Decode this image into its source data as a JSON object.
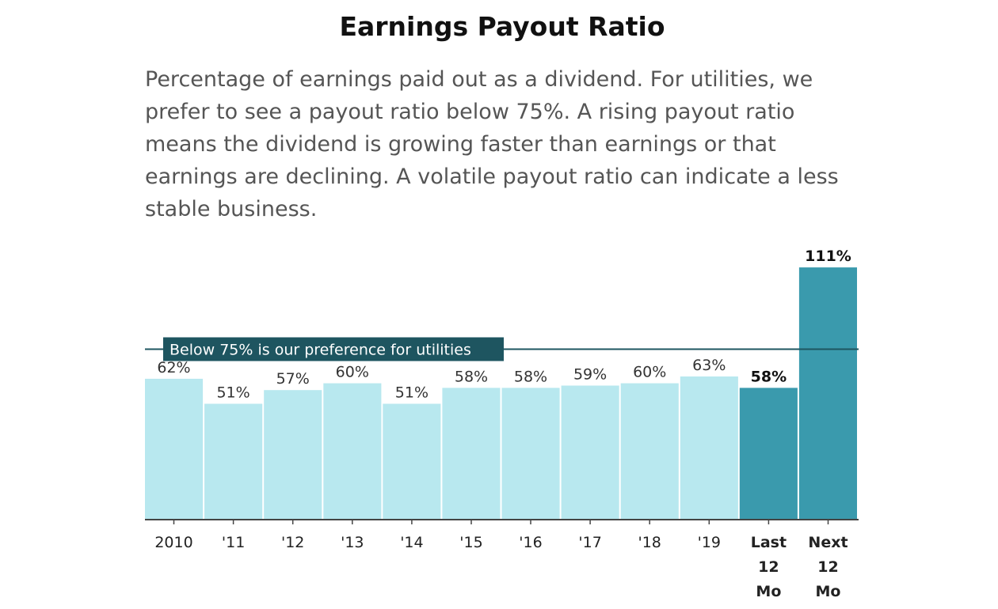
{
  "title": "Earnings Payout Ratio",
  "subtitle": "Percentage of earnings paid out as a dividend. For utilities, we prefer to see a payout ratio below 75%. A rising payout ratio means the dividend is growing faster than earnings or that earnings are declining. A volatile payout ratio can indicate a less stable business.",
  "chart_data": {
    "type": "bar",
    "title": "Earnings Payout Ratio",
    "xlabel": "",
    "ylabel": "",
    "ylim": [
      0,
      115
    ],
    "grid": false,
    "categories": [
      [
        "2010"
      ],
      [
        "'11"
      ],
      [
        "'12"
      ],
      [
        "'13"
      ],
      [
        "'14"
      ],
      [
        "'15"
      ],
      [
        "'16"
      ],
      [
        "'17"
      ],
      [
        "'18"
      ],
      [
        "'19"
      ],
      [
        "Last",
        "12",
        "Mo"
      ],
      [
        "Next",
        "12",
        "Mo"
      ]
    ],
    "values": [
      62,
      51,
      57,
      60,
      51,
      58,
      58,
      59,
      60,
      63,
      58,
      111
    ],
    "data_labels": [
      "62%",
      "51%",
      "57%",
      "60%",
      "51%",
      "58%",
      "58%",
      "59%",
      "60%",
      "63%",
      "58%",
      "111%"
    ],
    "highlighted": [
      false,
      false,
      false,
      false,
      false,
      false,
      false,
      false,
      false,
      false,
      true,
      true
    ],
    "reference_line": {
      "value": 75,
      "label": "Below 75% is our preference for utilities"
    },
    "colors": {
      "bar": "#b8e8ef",
      "bar_highlight": "#3a9aad",
      "reference": "#1e5560",
      "axis": "#444444"
    }
  }
}
